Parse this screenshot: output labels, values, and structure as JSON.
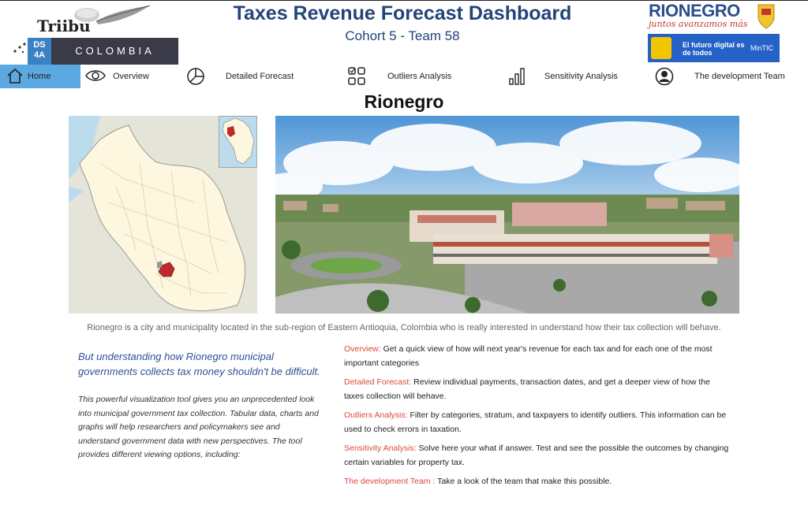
{
  "header": {
    "title": "Taxes Revenue Forecast Dashboard",
    "subtitle": "Cohort 5 - Team 58"
  },
  "logos": {
    "tribu": "Triibu",
    "ds4a": "DS 4A",
    "colombia": "COLOMBIA",
    "rionegro": "RIONEGRO",
    "rionegro_tagline": "juntos avanzamos más",
    "mintic_slogan": "El futuro digital es de todos",
    "mintic": "MinTIC"
  },
  "nav": {
    "items": [
      {
        "label": "Home",
        "icon": "home-icon",
        "active": true
      },
      {
        "label": "Overview",
        "icon": "eye-icon"
      },
      {
        "label": "Detailed Forecast",
        "icon": "pie-chart-icon"
      },
      {
        "label": "Outliers Analysis",
        "icon": "grid-icon"
      },
      {
        "label": "Sensitivity Analysis",
        "icon": "bar-chart-icon"
      },
      {
        "label": "The development Team",
        "icon": "user-icon"
      }
    ]
  },
  "main": {
    "city_title": "Rionegro",
    "caption": "Rionegro is a city and municipality located in the sub-region of Eastern Antioquia, Colombia who is really interested in understand how their tax collection will behave.",
    "lead": "But understanding how Rionegro municipal governments collects tax money shouldn't be difficult.",
    "body": "This powerful visualization tool gives you an unprecedented look into municipal government tax collection. Tabular data, charts and graphs will help researchers and policymakers see and understand government data with new perspectives. The tool provides different viewing options, including:",
    "features": [
      {
        "name": "Overview:",
        "text": " Get a quick view of how will next year's revenue for each tax and for each one of the most important categories"
      },
      {
        "name": "Detailed Forecast:",
        "text": " Review individual payments, transaction dates, and get a deeper view of how the taxes collection will behave."
      },
      {
        "name": "Outliers Analysis:",
        "text": " Filter by categories, stratum, and taxpayers to identify outliers. This information can be used to check errors in taxation."
      },
      {
        "name": "Sensitivity Analysis:",
        "text": " Solve here your what if answer. Test and see the possible the outcomes by changing certain variables for property tax."
      },
      {
        "name": "The development Team :",
        "text": " Take a look of the team that make this possible."
      }
    ]
  },
  "colors": {
    "title": "#22447a",
    "nav_active": "#5aa9e0",
    "feature_name": "#d84a3a",
    "lead": "#2c5296"
  }
}
